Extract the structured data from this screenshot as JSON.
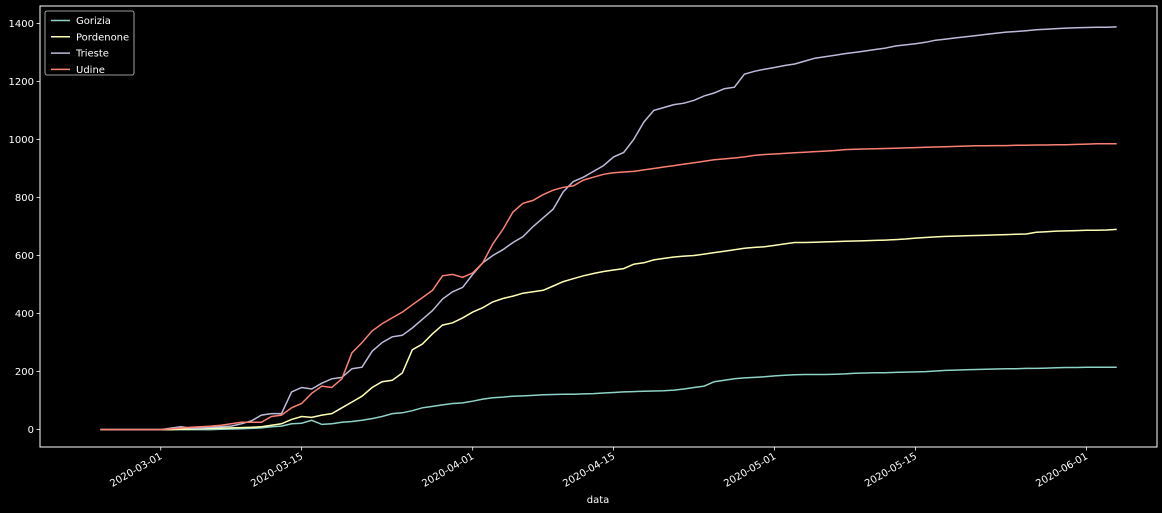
{
  "chart_data": {
    "type": "line",
    "title": "",
    "xlabel": "data",
    "ylabel": "",
    "xlim": [
      "2020-02-18",
      "2020-06-08"
    ],
    "ylim": [
      -60,
      1460
    ],
    "grid": false,
    "legend_position": "top-left",
    "x_ticks": [
      "2020-03-01",
      "2020-03-15",
      "2020-04-01",
      "2020-04-15",
      "2020-05-01",
      "2020-05-15",
      "2020-06-01"
    ],
    "y_ticks": [
      0,
      200,
      400,
      600,
      800,
      1000,
      1200,
      1400
    ],
    "x": [
      "2020-02-24",
      "2020-02-25",
      "2020-02-26",
      "2020-02-27",
      "2020-02-28",
      "2020-02-29",
      "2020-03-01",
      "2020-03-02",
      "2020-03-03",
      "2020-03-04",
      "2020-03-05",
      "2020-03-06",
      "2020-03-07",
      "2020-03-08",
      "2020-03-09",
      "2020-03-10",
      "2020-03-11",
      "2020-03-12",
      "2020-03-13",
      "2020-03-14",
      "2020-03-15",
      "2020-03-16",
      "2020-03-17",
      "2020-03-18",
      "2020-03-19",
      "2020-03-20",
      "2020-03-21",
      "2020-03-22",
      "2020-03-23",
      "2020-03-24",
      "2020-03-25",
      "2020-03-26",
      "2020-03-27",
      "2020-03-28",
      "2020-03-29",
      "2020-03-30",
      "2020-03-31",
      "2020-04-01",
      "2020-04-02",
      "2020-04-03",
      "2020-04-04",
      "2020-04-05",
      "2020-04-06",
      "2020-04-07",
      "2020-04-08",
      "2020-04-09",
      "2020-04-10",
      "2020-04-11",
      "2020-04-12",
      "2020-04-13",
      "2020-04-14",
      "2020-04-15",
      "2020-04-16",
      "2020-04-17",
      "2020-04-18",
      "2020-04-19",
      "2020-04-20",
      "2020-04-21",
      "2020-04-22",
      "2020-04-23",
      "2020-04-24",
      "2020-04-25",
      "2020-04-26",
      "2020-04-27",
      "2020-04-28",
      "2020-04-29",
      "2020-04-30",
      "2020-05-01",
      "2020-05-02",
      "2020-05-03",
      "2020-05-04",
      "2020-05-05",
      "2020-05-06",
      "2020-05-07",
      "2020-05-08",
      "2020-05-09",
      "2020-05-10",
      "2020-05-11",
      "2020-05-12",
      "2020-05-13",
      "2020-05-14",
      "2020-05-15",
      "2020-05-16",
      "2020-05-17",
      "2020-05-18",
      "2020-05-19",
      "2020-05-20",
      "2020-05-21",
      "2020-05-22",
      "2020-05-23",
      "2020-05-24",
      "2020-05-25",
      "2020-05-26",
      "2020-05-27",
      "2020-05-28",
      "2020-05-29",
      "2020-05-30",
      "2020-05-31",
      "2020-06-01",
      "2020-06-02",
      "2020-06-03",
      "2020-06-04"
    ],
    "series": [
      {
        "name": "Gorizia",
        "color": "#8dd3c7",
        "values": [
          0,
          0,
          0,
          0,
          0,
          0,
          0,
          0,
          0,
          0,
          0,
          0,
          1,
          2,
          3,
          4,
          6,
          10,
          12,
          20,
          22,
          32,
          18,
          20,
          25,
          28,
          32,
          38,
          45,
          55,
          58,
          65,
          75,
          80,
          85,
          90,
          92,
          98,
          105,
          110,
          112,
          115,
          116,
          118,
          120,
          121,
          122,
          122,
          123,
          124,
          126,
          128,
          130,
          131,
          132,
          133,
          134,
          136,
          140,
          145,
          150,
          165,
          170,
          175,
          178,
          180,
          182,
          185,
          187,
          189,
          190,
          190,
          190,
          191,
          192,
          194,
          195,
          196,
          196,
          197,
          198,
          199,
          200,
          202,
          204,
          205,
          206,
          207,
          208,
          209,
          210,
          210,
          211,
          211,
          212,
          213,
          214,
          214,
          215,
          215,
          215,
          215
        ]
      },
      {
        "name": "Pordenone",
        "color": "#ffffb3",
        "values": [
          0,
          0,
          0,
          0,
          0,
          0,
          0,
          0,
          1,
          2,
          3,
          4,
          5,
          6,
          7,
          8,
          10,
          15,
          20,
          35,
          45,
          42,
          50,
          55,
          75,
          95,
          115,
          145,
          165,
          170,
          195,
          275,
          295,
          330,
          360,
          368,
          385,
          405,
          420,
          440,
          452,
          460,
          470,
          475,
          480,
          495,
          510,
          520,
          530,
          538,
          545,
          550,
          555,
          570,
          575,
          585,
          590,
          595,
          598,
          600,
          605,
          610,
          615,
          620,
          625,
          628,
          630,
          635,
          640,
          645,
          645,
          646,
          647,
          648,
          649,
          650,
          651,
          652,
          653,
          655,
          657,
          660,
          662,
          664,
          666,
          667,
          668,
          669,
          670,
          671,
          672,
          673,
          674,
          680,
          682,
          684,
          685,
          686,
          687,
          687,
          688,
          690
        ]
      },
      {
        "name": "Trieste",
        "color": "#bebada",
        "values": [
          0,
          0,
          0,
          0,
          0,
          0,
          0,
          5,
          10,
          5,
          5,
          8,
          10,
          12,
          20,
          30,
          50,
          55,
          55,
          130,
          145,
          140,
          160,
          175,
          180,
          210,
          215,
          270,
          300,
          320,
          325,
          350,
          380,
          410,
          450,
          475,
          490,
          535,
          575,
          600,
          620,
          645,
          665,
          700,
          730,
          760,
          820,
          855,
          870,
          890,
          910,
          940,
          955,
          1000,
          1060,
          1100,
          1110,
          1120,
          1125,
          1135,
          1150,
          1160,
          1175,
          1180,
          1225,
          1235,
          1242,
          1248,
          1255,
          1260,
          1270,
          1280,
          1285,
          1290,
          1296,
          1300,
          1305,
          1310,
          1315,
          1322,
          1326,
          1330,
          1335,
          1342,
          1346,
          1350,
          1354,
          1358,
          1362,
          1366,
          1370,
          1372,
          1375,
          1378,
          1380,
          1382,
          1384,
          1385,
          1386,
          1387,
          1387,
          1388
        ]
      },
      {
        "name": "Udine",
        "color": "#fb8072",
        "values": [
          0,
          0,
          0,
          0,
          0,
          0,
          0,
          3,
          5,
          8,
          10,
          12,
          15,
          20,
          25,
          25,
          25,
          45,
          50,
          75,
          90,
          125,
          150,
          145,
          175,
          265,
          300,
          340,
          365,
          385,
          405,
          430,
          455,
          480,
          530,
          535,
          525,
          540,
          575,
          640,
          690,
          750,
          780,
          790,
          810,
          825,
          835,
          840,
          860,
          870,
          880,
          885,
          888,
          890,
          895,
          900,
          905,
          910,
          915,
          920,
          925,
          930,
          933,
          936,
          940,
          945,
          948,
          950,
          952,
          954,
          956,
          958,
          960,
          962,
          965,
          966,
          967,
          968,
          969,
          970,
          971,
          972,
          973,
          974,
          975,
          976,
          977,
          978,
          978,
          979,
          979,
          980,
          980,
          981,
          981,
          982,
          982,
          983,
          984,
          985,
          985,
          985
        ]
      }
    ]
  }
}
